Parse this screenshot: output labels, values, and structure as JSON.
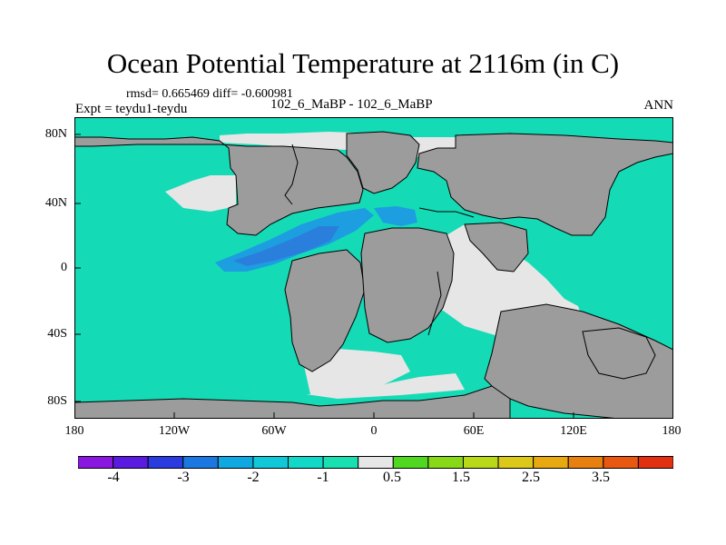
{
  "title": "Ocean Potential Temperature at 2116m (in C)",
  "stats": "rmsd= 0.665469 diff= -0.600981",
  "experiment": "Expt = teydu1-teydu",
  "experiment_ids": "102_6_MaBP - 102_6_MaBP",
  "season": "ANN",
  "lat_labels": [
    "80N",
    "40N",
    "0",
    "40S",
    "80S"
  ],
  "lon_labels": [
    "180",
    "120W",
    "60W",
    "0",
    "60E",
    "120E",
    "180"
  ],
  "colorbar": {
    "labels": [
      "-4",
      "-3",
      "-2",
      "-1",
      "0.5",
      "1.5",
      "2.5",
      "3.5"
    ],
    "colors": [
      "#8a17e0",
      "#5a1ae0",
      "#2a3ce0",
      "#1a78e0",
      "#10a8e0",
      "#10c8d8",
      "#12d8c8",
      "#18e0b0",
      "#e6e6e6",
      "#50d820",
      "#88d818",
      "#b8d818",
      "#dcc818",
      "#e8a810",
      "#e88010",
      "#e85810",
      "#e03010"
    ]
  },
  "colors": {
    "land": "#9c9c9c",
    "ocean": "#14dbb6",
    "near_zero": "#e6e6e6",
    "cold_anomaly": "#1c9ee0",
    "colder_anomaly": "#2a7fdc"
  }
}
